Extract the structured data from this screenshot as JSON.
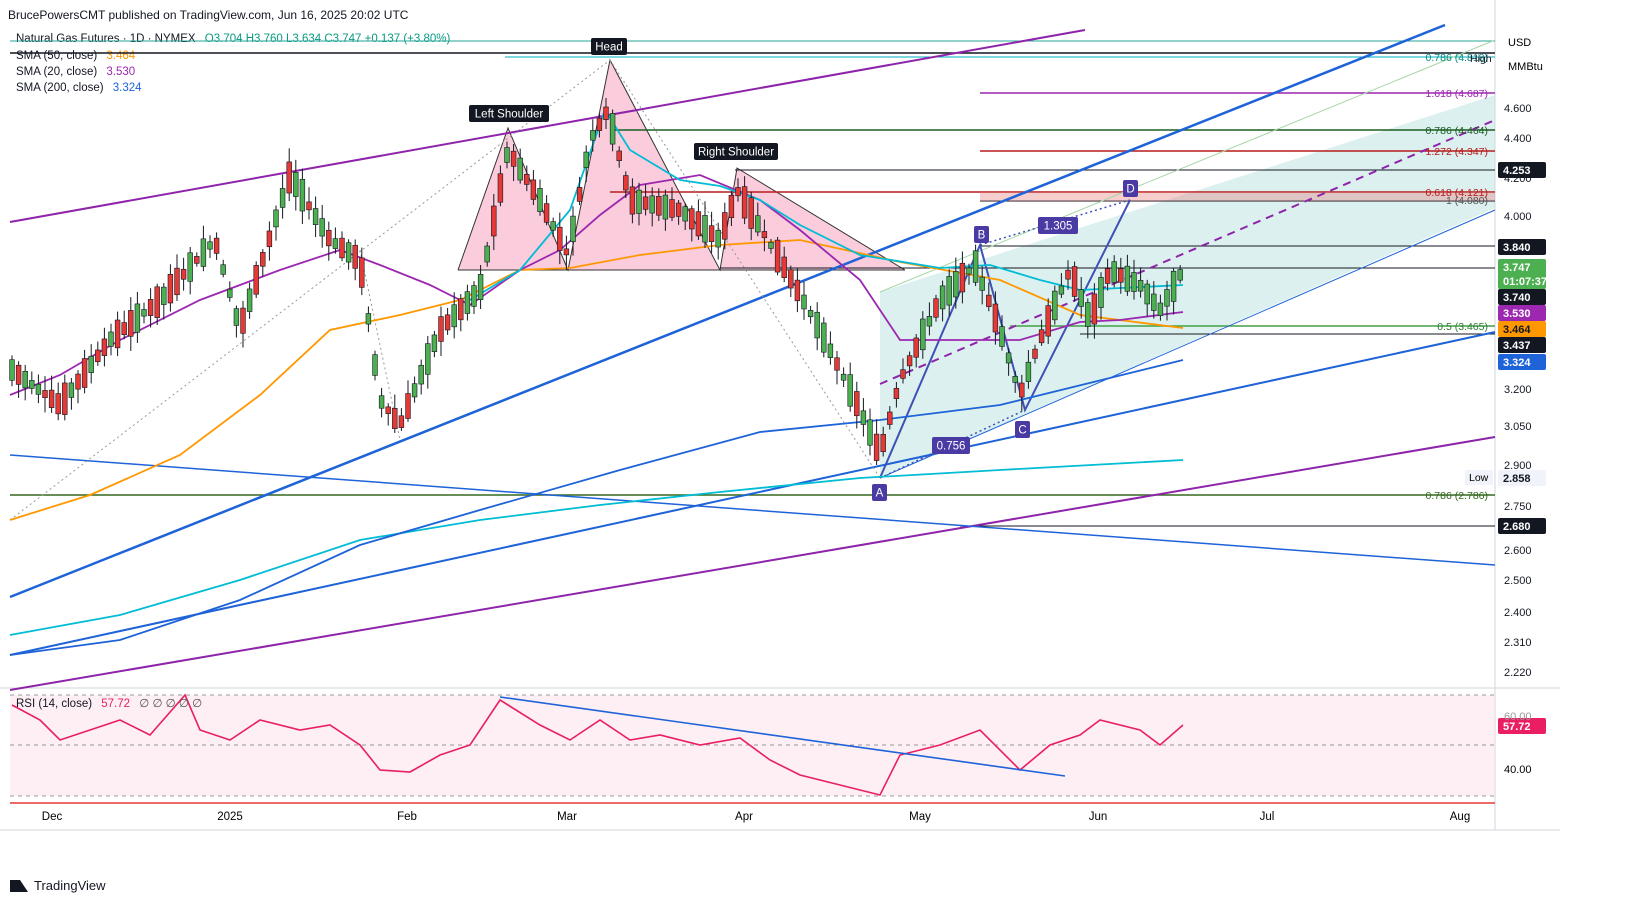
{
  "header": {
    "publisher": "BrucePowersCMT published on TradingView.com, Jun 16, 2025 20:02 UTC"
  },
  "legend": {
    "instrument": "Natural Gas Futures · 1D · NYMEX",
    "ohlc": "O3.704  H3.760  L3.634  C3.747  +0.137 (+3.80%)",
    "sma50_label": "SMA (50, close)",
    "sma50_value": "3.464",
    "sma20_label": "SMA (20, close)",
    "sma20_value": "3.530",
    "sma200_label": "SMA (200, close)",
    "sma200_value": "3.324",
    "rsi_label": "RSI (14, close)",
    "rsi_value": "57.72",
    "rsi_extra": "∅ ∅ ∅ ∅ ∅"
  },
  "axis": {
    "currency": "USD",
    "unit": "MMBtu",
    "ticks": [
      "4.600",
      "4.400",
      "4.200",
      "4.000",
      "3.200",
      "3.050",
      "2.900",
      "2.750",
      "2.600",
      "2.500",
      "2.400",
      "2.310",
      "2.220"
    ],
    "rsi_ticks": [
      "60.00",
      "40.00"
    ],
    "high_label": "High",
    "low_label": "Low",
    "badges": [
      {
        "text": "4.253",
        "style": "dark"
      },
      {
        "text": "3.840",
        "style": "dark"
      },
      {
        "text": "3.747",
        "style": "green"
      },
      {
        "text": "01:07:37",
        "style": "green"
      },
      {
        "text": "3.740",
        "style": "dark"
      },
      {
        "text": "3.530",
        "style": "purple"
      },
      {
        "text": "3.464",
        "style": "orange"
      },
      {
        "text": "3.437",
        "style": "dark"
      },
      {
        "text": "3.324",
        "style": "blue"
      },
      {
        "text": "2.858",
        "style": "plain"
      },
      {
        "text": "2.680",
        "style": "dark"
      },
      {
        "text": "57.72",
        "style": "pink"
      }
    ]
  },
  "x_labels": [
    "Dec",
    "2025",
    "Feb",
    "Mar",
    "Apr",
    "May",
    "Jun",
    "Jul",
    "Aug"
  ],
  "annotations": {
    "head": "Head",
    "left_shoulder": "Left Shoulder",
    "right_shoulder": "Right Shoulder",
    "point_a": "A",
    "point_b": "B",
    "point_c": "C",
    "point_d": "D",
    "ratio_1": "1.305",
    "ratio_2": "0.756"
  },
  "fib_labels": [
    {
      "text": "0.786 (4.818)",
      "color": "#00897b"
    },
    {
      "text": "1.618 (4.687)",
      "color": "#9c27b0"
    },
    {
      "text": "0.786 (4.464)",
      "color": "#1b5e20"
    },
    {
      "text": "1.272 (4.347)",
      "color": "#b71c1c"
    },
    {
      "text": "0.618 (4.121)",
      "color": "#b71c1c"
    },
    {
      "text": "1 (4.080)",
      "color": "#555555"
    },
    {
      "text": "0.5 (3.465)",
      "color": "#2e7d32"
    },
    {
      "text": "0.786 (2.786)",
      "color": "#33691e"
    }
  ],
  "colors": {
    "up": "#4caf50",
    "down": "#e53935",
    "sma20": "#00bcd4",
    "sma50": "#ff9800",
    "sma20line": "#9c27b0",
    "sma200": "#1e63d8",
    "rsi": "#e91e63",
    "hs_fill": "#f8bbd0",
    "proj_fill": "#b2dfdb"
  },
  "footer": {
    "brand": "TradingView"
  },
  "chart_data": {
    "type": "line",
    "title": "Natural Gas Futures · 1D · NYMEX",
    "ylim": [
      2.15,
      4.9
    ],
    "series": [
      {
        "name": "Natural Gas Futures",
        "x": [
          "2024-11-25",
          "2024-12-02",
          "2024-12-09",
          "2024-12-16",
          "2024-12-23",
          "2024-12-30",
          "2025-01-06",
          "2025-01-13",
          "2025-01-20",
          "2025-01-27",
          "2025-02-03",
          "2025-02-10",
          "2025-02-17",
          "2025-02-24",
          "2025-03-03",
          "2025-03-10",
          "2025-03-17",
          "2025-03-24",
          "2025-03-31",
          "2025-04-07",
          "2025-04-14",
          "2025-04-21",
          "2025-04-28",
          "2025-05-05",
          "2025-05-12",
          "2025-05-19",
          "2025-05-26",
          "2025-06-02",
          "2025-06-09",
          "2025-06-16"
        ],
        "values": [
          3.25,
          3.1,
          3.2,
          3.55,
          3.6,
          3.9,
          4.0,
          3.75,
          3.6,
          3.05,
          3.4,
          3.55,
          4.4,
          3.95,
          4.55,
          4.15,
          4.05,
          3.95,
          4.1,
          3.65,
          3.4,
          3.0,
          3.55,
          3.75,
          3.5,
          3.15,
          3.55,
          3.72,
          3.6,
          3.747
        ]
      }
    ]
  }
}
